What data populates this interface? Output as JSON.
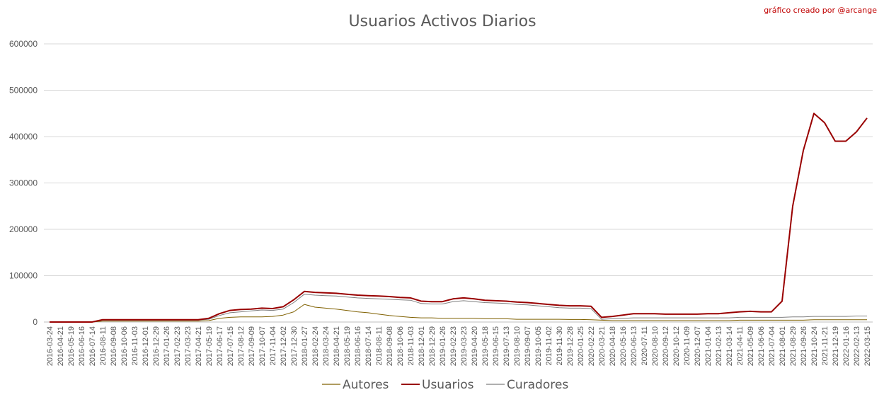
{
  "credit": "gráfico creado por @arcange",
  "chart_data": {
    "type": "line",
    "title": "Usuarios Activos Diarios",
    "xlabel": "",
    "ylabel": "",
    "ylim": [
      0,
      600000
    ],
    "yticks": [
      0,
      100000,
      200000,
      300000,
      400000,
      500000,
      600000
    ],
    "grid": true,
    "legend_position": "bottom",
    "xticks": [
      "2016-03-24",
      "2016-04-21",
      "2016-05-19",
      "2016-06-16",
      "2016-07-14",
      "2016-08-11",
      "2016-09-08",
      "2016-10-06",
      "2016-11-03",
      "2016-12-01",
      "2016-12-29",
      "2017-01-26",
      "2017-02-23",
      "2017-03-23",
      "2017-04-21",
      "2017-05-19",
      "2017-06-17",
      "2017-07-15",
      "2017-08-12",
      "2017-09-09",
      "2017-10-07",
      "2017-11-04",
      "2017-12-02",
      "2017-12-30",
      "2018-01-27",
      "2018-02-24",
      "2018-03-24",
      "2018-04-21",
      "2018-05-19",
      "2018-06-16",
      "2018-07-14",
      "2018-08-11",
      "2018-09-08",
      "2018-10-06",
      "2018-11-03",
      "2018-12-01",
      "2018-12-29",
      "2019-01-26",
      "2019-02-23",
      "2019-03-23",
      "2019-04-20",
      "2019-05-18",
      "2019-06-15",
      "2019-07-13",
      "2019-08-10",
      "2019-09-07",
      "2019-10-05",
      "2019-11-02",
      "2019-11-30",
      "2019-12-28",
      "2020-01-25",
      "2020-02-22",
      "2020-03-21",
      "2020-04-18",
      "2020-05-16",
      "2020-06-13",
      "2020-07-11",
      "2020-08-10",
      "2020-09-12",
      "2020-10-12",
      "2020-11-09",
      "2020-12-07",
      "2021-01-04",
      "2021-02-13",
      "2021-03-14",
      "2021-04-11",
      "2021-05-09",
      "2021-06-06",
      "2021-07-04",
      "2021-08-01",
      "2021-08-29",
      "2021-09-26",
      "2021-10-24",
      "2021-11-21",
      "2021-12-19",
      "2022-01-16",
      "2022-02-13",
      "2022-03-15"
    ],
    "series": [
      {
        "name": "Autores",
        "color": "#7f6000",
        "values": [
          0,
          0,
          0,
          0,
          0,
          2000,
          2000,
          2000,
          2000,
          2000,
          2000,
          2000,
          2000,
          2000,
          2000,
          3000,
          8000,
          10000,
          11000,
          11000,
          11000,
          12000,
          15000,
          22000,
          38000,
          32000,
          30000,
          28000,
          25000,
          22000,
          20000,
          17000,
          14000,
          12000,
          10000,
          9000,
          9000,
          8000,
          8000,
          8000,
          8000,
          7000,
          7000,
          7000,
          6000,
          6000,
          6000,
          6000,
          6000,
          5500,
          5500,
          5000,
          4000,
          3000,
          3000,
          3000,
          3000,
          3000,
          3000,
          3000,
          3000,
          3000,
          3000,
          3000,
          3000,
          4000,
          4000,
          4000,
          4000,
          4000,
          4000,
          4000,
          5000,
          5000,
          5000,
          5000,
          5000,
          5000
        ]
      },
      {
        "name": "Usuarios",
        "color": "#990000",
        "values": [
          0,
          0,
          0,
          0,
          0,
          5000,
          5000,
          5000,
          5000,
          5000,
          5000,
          5000,
          5000,
          5000,
          5000,
          8000,
          18000,
          25000,
          27000,
          28000,
          30000,
          29000,
          33000,
          48000,
          66000,
          64000,
          63000,
          62000,
          60000,
          58000,
          57000,
          56000,
          55000,
          53000,
          52000,
          45000,
          44000,
          44000,
          50000,
          52000,
          50000,
          47000,
          46000,
          45000,
          43000,
          42000,
          40000,
          38000,
          36000,
          35000,
          35000,
          34000,
          10000,
          12000,
          15000,
          18000,
          18000,
          18000,
          17000,
          17000,
          17000,
          17000,
          18000,
          18000,
          20000,
          22000,
          23000,
          22000,
          22000,
          45000,
          250000,
          370000,
          450000,
          430000,
          390000,
          390000,
          410000,
          440000
        ]
      },
      {
        "name": "Curadores",
        "color": "#7f7f7f",
        "values": [
          0,
          0,
          0,
          0,
          0,
          4000,
          4000,
          4000,
          4000,
          4000,
          4000,
          4000,
          4000,
          4000,
          4000,
          6000,
          14000,
          20000,
          22000,
          24000,
          26000,
          25000,
          28000,
          42000,
          60000,
          58000,
          57000,
          56000,
          54000,
          52000,
          51000,
          50000,
          49000,
          48000,
          47000,
          40000,
          39000,
          39000,
          44000,
          46000,
          44000,
          42000,
          41000,
          40000,
          38000,
          37000,
          35000,
          33000,
          31000,
          30000,
          30000,
          29000,
          6000,
          7000,
          8000,
          9000,
          9000,
          9000,
          9000,
          9000,
          9000,
          9000,
          9000,
          9000,
          9000,
          10000,
          10000,
          10000,
          10000,
          10000,
          11000,
          11000,
          12000,
          12000,
          12000,
          12000,
          13000,
          13000
        ]
      }
    ]
  }
}
